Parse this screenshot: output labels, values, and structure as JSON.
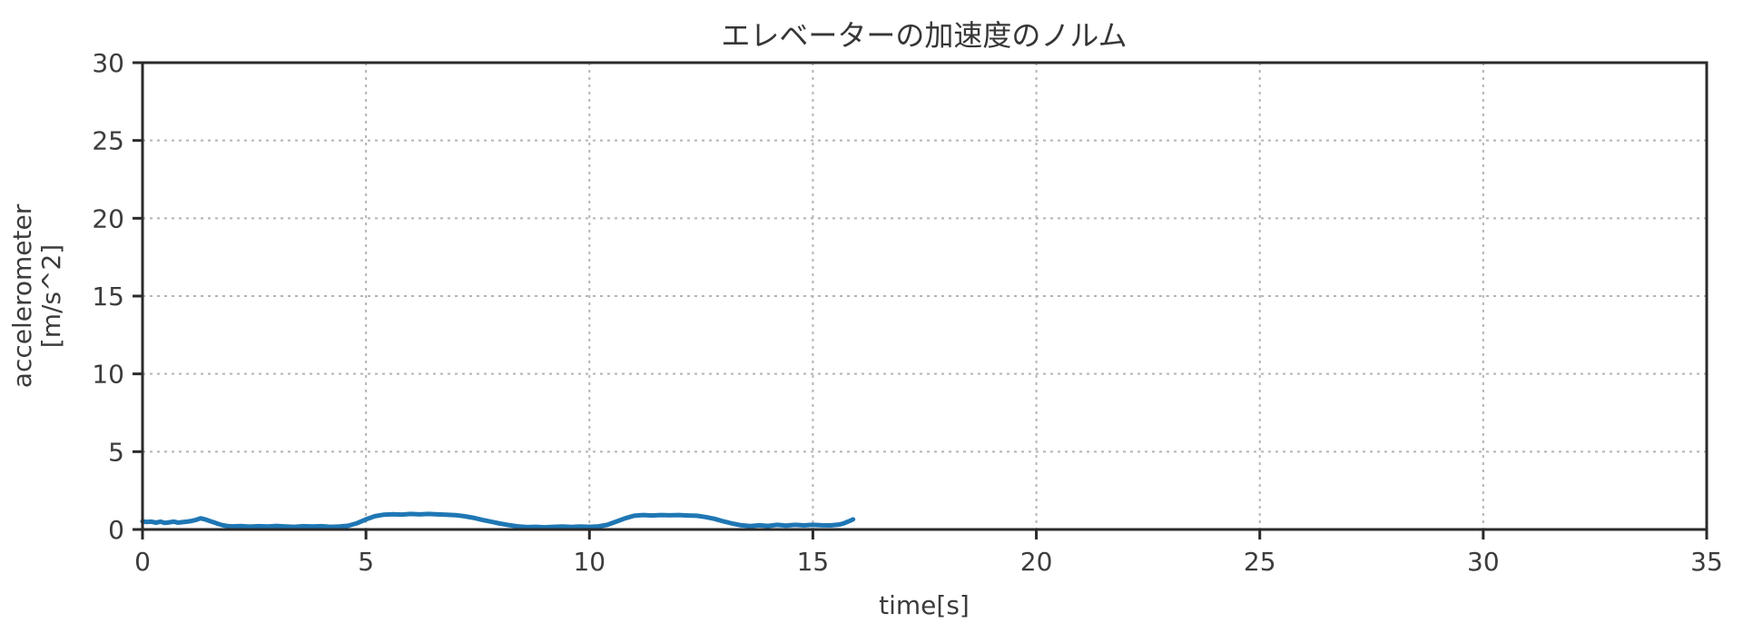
{
  "figure": {
    "background": "#ffffff",
    "ylabel_line1": "accelerometer",
    "ylabel_line2": "[m/s^2]"
  },
  "chart_data": {
    "type": "line",
    "title": "エレベーターの加速度のノルム",
    "xlabel": "time[s]",
    "ylabel": "accelerometer [m/s^2]",
    "xlim": [
      0,
      35
    ],
    "ylim": [
      0,
      30
    ],
    "x_ticks": [
      0,
      5,
      10,
      15,
      20,
      25,
      30,
      35
    ],
    "y_ticks": [
      0,
      5,
      10,
      15,
      20,
      25,
      30
    ],
    "grid": true,
    "grid_style": "dotted",
    "legend_position": "none",
    "colors": {
      "line": "#1f77b4",
      "spine": "#2a2a2a",
      "grid": "#b4b4b4",
      "text": "#3c3c3c"
    },
    "series": [
      {
        "name": "acceleration-norm",
        "color": "#1f77b4",
        "points": [
          [
            0.0,
            0.52
          ],
          [
            0.1,
            0.48
          ],
          [
            0.2,
            0.5
          ],
          [
            0.3,
            0.44
          ],
          [
            0.4,
            0.5
          ],
          [
            0.5,
            0.42
          ],
          [
            0.6,
            0.46
          ],
          [
            0.7,
            0.5
          ],
          [
            0.8,
            0.44
          ],
          [
            0.9,
            0.47
          ],
          [
            1.0,
            0.5
          ],
          [
            1.1,
            0.55
          ],
          [
            1.2,
            0.62
          ],
          [
            1.3,
            0.72
          ],
          [
            1.4,
            0.65
          ],
          [
            1.5,
            0.55
          ],
          [
            1.6,
            0.45
          ],
          [
            1.7,
            0.35
          ],
          [
            1.8,
            0.27
          ],
          [
            1.9,
            0.22
          ],
          [
            2.0,
            0.2
          ],
          [
            2.2,
            0.22
          ],
          [
            2.4,
            0.18
          ],
          [
            2.6,
            0.21
          ],
          [
            2.8,
            0.19
          ],
          [
            3.0,
            0.23
          ],
          [
            3.2,
            0.19
          ],
          [
            3.4,
            0.17
          ],
          [
            3.6,
            0.21
          ],
          [
            3.8,
            0.19
          ],
          [
            4.0,
            0.21
          ],
          [
            4.2,
            0.17
          ],
          [
            4.4,
            0.19
          ],
          [
            4.6,
            0.24
          ],
          [
            4.8,
            0.4
          ],
          [
            5.0,
            0.65
          ],
          [
            5.2,
            0.85
          ],
          [
            5.4,
            0.95
          ],
          [
            5.6,
            0.98
          ],
          [
            5.8,
            0.96
          ],
          [
            6.0,
            1.0
          ],
          [
            6.2,
            0.97
          ],
          [
            6.4,
            1.0
          ],
          [
            6.6,
            0.97
          ],
          [
            6.8,
            0.95
          ],
          [
            7.0,
            0.92
          ],
          [
            7.2,
            0.85
          ],
          [
            7.4,
            0.75
          ],
          [
            7.6,
            0.62
          ],
          [
            7.8,
            0.5
          ],
          [
            8.0,
            0.38
          ],
          [
            8.2,
            0.28
          ],
          [
            8.4,
            0.2
          ],
          [
            8.6,
            0.15
          ],
          [
            8.8,
            0.17
          ],
          [
            9.0,
            0.14
          ],
          [
            9.2,
            0.17
          ],
          [
            9.4,
            0.19
          ],
          [
            9.6,
            0.16
          ],
          [
            9.8,
            0.19
          ],
          [
            10.0,
            0.17
          ],
          [
            10.2,
            0.2
          ],
          [
            10.4,
            0.3
          ],
          [
            10.6,
            0.5
          ],
          [
            10.8,
            0.72
          ],
          [
            11.0,
            0.88
          ],
          [
            11.2,
            0.93
          ],
          [
            11.4,
            0.9
          ],
          [
            11.6,
            0.93
          ],
          [
            11.8,
            0.91
          ],
          [
            12.0,
            0.93
          ],
          [
            12.2,
            0.9
          ],
          [
            12.4,
            0.88
          ],
          [
            12.6,
            0.8
          ],
          [
            12.8,
            0.68
          ],
          [
            13.0,
            0.52
          ],
          [
            13.2,
            0.38
          ],
          [
            13.4,
            0.27
          ],
          [
            13.6,
            0.22
          ],
          [
            13.8,
            0.27
          ],
          [
            14.0,
            0.23
          ],
          [
            14.2,
            0.3
          ],
          [
            14.4,
            0.25
          ],
          [
            14.6,
            0.3
          ],
          [
            14.8,
            0.26
          ],
          [
            15.0,
            0.3
          ],
          [
            15.2,
            0.27
          ],
          [
            15.4,
            0.26
          ],
          [
            15.6,
            0.32
          ],
          [
            15.7,
            0.4
          ],
          [
            15.8,
            0.52
          ],
          [
            15.9,
            0.65
          ]
        ]
      }
    ]
  }
}
